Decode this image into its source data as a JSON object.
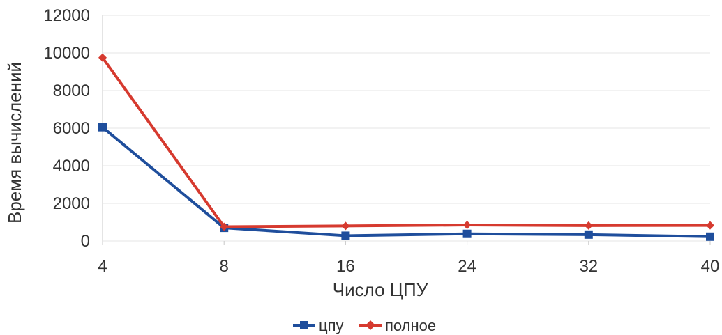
{
  "chart_data": {
    "type": "line",
    "categories": [
      "4",
      "8",
      "16",
      "24",
      "32",
      "40"
    ],
    "series": [
      {
        "name": "цпу",
        "color": "#1f4e9c",
        "marker": "square",
        "values": [
          6050,
          700,
          280,
          380,
          340,
          230
        ]
      },
      {
        "name": "полное",
        "color": "#d63a2f",
        "marker": "diamond",
        "values": [
          9750,
          760,
          800,
          850,
          820,
          830
        ]
      }
    ],
    "xlabel": "Число ЦПУ",
    "ylabel": "Время вычислений",
    "ylim": [
      0,
      12000
    ],
    "yticks": [
      "0",
      "2000",
      "4000",
      "6000",
      "8000",
      "10000",
      "12000"
    ],
    "grid": true,
    "legend_position": "bottom-center"
  }
}
